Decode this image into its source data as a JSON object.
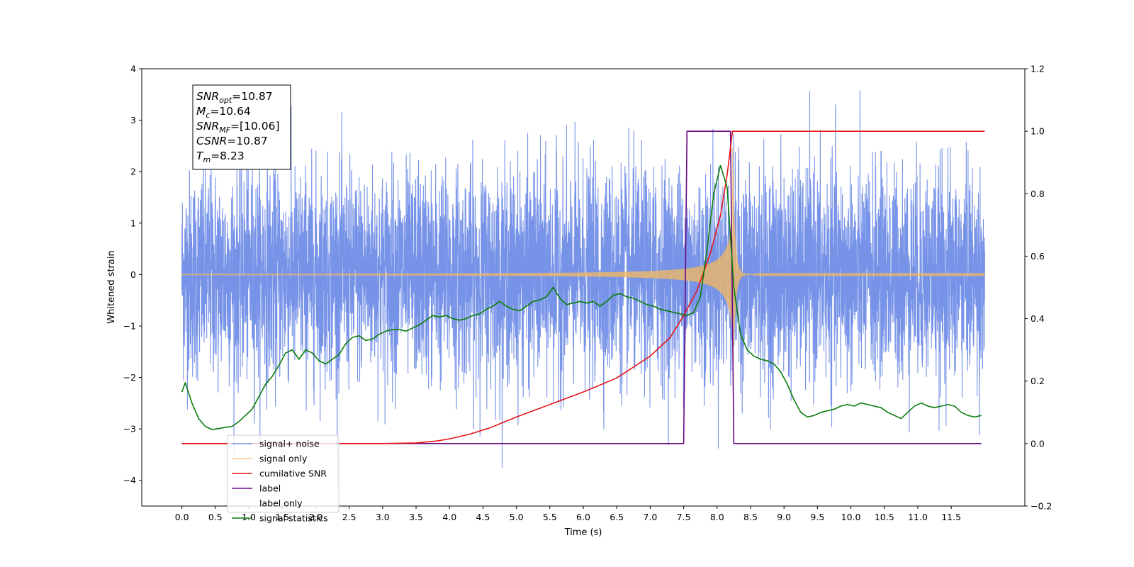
{
  "chart_data": {
    "type": "line",
    "xlabel": "Time (s)",
    "ylabel": "Whitened strain",
    "xlim": [
      -0.6,
      12.6
    ],
    "ylim": [
      -4.5,
      4.0
    ],
    "y2lim": [
      -0.2,
      1.2
    ],
    "xticks": [
      "0.0",
      "0.5",
      "1.0",
      "1.5",
      "2.0",
      "2.5",
      "3.0",
      "3.5",
      "4.0",
      "4.5",
      "5.0",
      "5.5",
      "6.0",
      "6.5",
      "7.0",
      "7.5",
      "8.0",
      "8.5",
      "9.0",
      "9.5",
      "10.0",
      "10.5",
      "11.0",
      "11.5"
    ],
    "yticks": [
      "−4",
      "−3",
      "−2",
      "−1",
      "0",
      "1",
      "2",
      "3",
      "4"
    ],
    "y2ticks": [
      "−0.2",
      "0.0",
      "0.2",
      "0.4",
      "0.6",
      "0.8",
      "1.0",
      "1.2"
    ],
    "legend_position": "lower-left",
    "annotation": [
      {
        "base": "SNR",
        "sub": "opt",
        "value": "=10.87"
      },
      {
        "base": "M",
        "sub": "c",
        "value": "=10.64"
      },
      {
        "base": "SNR",
        "sub": "MF",
        "value": "=[10.06]"
      },
      {
        "base": "CSNR",
        "sub": "",
        "value": "=10.87"
      },
      {
        "base": "T",
        "sub": "m",
        "value": "=8.23"
      }
    ],
    "series": [
      {
        "name": "signal+ noise",
        "color": "#7793e8",
        "axis": "left",
        "kind": "noise",
        "x_range": [
          0.0,
          12.0
        ],
        "amplitude": 1.0,
        "y_min": -4.1,
        "y_max": 3.63
      },
      {
        "name": "signal only",
        "color": "#f5b95e",
        "axis": "left",
        "kind": "chirp",
        "x_range": [
          0.0,
          12.0
        ],
        "peak_time": 8.23,
        "peak_amplitude": 2.6
      },
      {
        "name": "cumilative SNR",
        "color": "#e8141a",
        "axis": "right",
        "x": [
          0.0,
          2.5,
          3.0,
          3.5,
          3.8,
          4.0,
          4.3,
          4.6,
          5.0,
          5.5,
          6.0,
          6.5,
          7.0,
          7.3,
          7.5,
          7.7,
          7.9,
          8.05,
          8.15,
          8.23,
          8.6,
          9.0,
          10.0,
          11.0,
          12.0
        ],
        "y": [
          0.0,
          0.0,
          0.0,
          0.002,
          0.008,
          0.015,
          0.03,
          0.05,
          0.085,
          0.125,
          0.165,
          0.21,
          0.28,
          0.34,
          0.41,
          0.49,
          0.61,
          0.73,
          0.86,
          1.0,
          1.0,
          1.0,
          1.0,
          1.0,
          1.0
        ]
      },
      {
        "name": "label",
        "color": "#6a0880",
        "axis": "right",
        "x": [
          0.0,
          7.5,
          7.55,
          8.2,
          8.25,
          11.95
        ],
        "y": [
          0.0,
          0.0,
          1.0,
          1.0,
          0.0,
          0.0
        ]
      },
      {
        "name": "label only",
        "color": "#ffffff",
        "axis": "right",
        "x": [],
        "y": []
      },
      {
        "name": "signal statistics",
        "color": "#0a7c0a",
        "axis": "right",
        "x": [
          0.0,
          0.05,
          0.15,
          0.25,
          0.35,
          0.45,
          0.55,
          0.65,
          0.75,
          0.85,
          0.95,
          1.05,
          1.15,
          1.25,
          1.35,
          1.45,
          1.55,
          1.65,
          1.75,
          1.85,
          1.95,
          2.05,
          2.15,
          2.25,
          2.35,
          2.45,
          2.55,
          2.65,
          2.75,
          2.85,
          2.95,
          3.05,
          3.15,
          3.25,
          3.35,
          3.45,
          3.55,
          3.65,
          3.75,
          3.85,
          3.95,
          4.05,
          4.15,
          4.25,
          4.35,
          4.45,
          4.55,
          4.65,
          4.75,
          4.85,
          4.95,
          5.05,
          5.15,
          5.25,
          5.35,
          5.45,
          5.55,
          5.65,
          5.75,
          5.85,
          5.95,
          6.05,
          6.15,
          6.25,
          6.35,
          6.45,
          6.55,
          6.65,
          6.75,
          6.85,
          6.95,
          7.05,
          7.15,
          7.25,
          7.35,
          7.45,
          7.55,
          7.65,
          7.75,
          7.85,
          7.95,
          8.05,
          8.15,
          8.25,
          8.35,
          8.45,
          8.55,
          8.65,
          8.75,
          8.85,
          8.95,
          9.05,
          9.15,
          9.25,
          9.35,
          9.45,
          9.55,
          9.65,
          9.75,
          9.85,
          9.95,
          10.05,
          10.15,
          10.25,
          10.35,
          10.45,
          10.55,
          10.65,
          10.75,
          10.85,
          10.95,
          11.05,
          11.15,
          11.25,
          11.35,
          11.45,
          11.55,
          11.65,
          11.75,
          11.85,
          11.95
        ],
        "y": [
          0.165,
          0.195,
          0.13,
          0.08,
          0.055,
          0.045,
          0.048,
          0.052,
          0.055,
          0.07,
          0.09,
          0.11,
          0.15,
          0.19,
          0.215,
          0.25,
          0.29,
          0.3,
          0.27,
          0.3,
          0.29,
          0.265,
          0.255,
          0.27,
          0.285,
          0.32,
          0.34,
          0.345,
          0.33,
          0.335,
          0.35,
          0.36,
          0.365,
          0.365,
          0.36,
          0.37,
          0.38,
          0.395,
          0.41,
          0.405,
          0.41,
          0.4,
          0.395,
          0.4,
          0.41,
          0.415,
          0.43,
          0.44,
          0.455,
          0.44,
          0.43,
          0.425,
          0.44,
          0.455,
          0.46,
          0.47,
          0.5,
          0.465,
          0.445,
          0.45,
          0.455,
          0.45,
          0.455,
          0.44,
          0.455,
          0.475,
          0.48,
          0.47,
          0.465,
          0.455,
          0.445,
          0.44,
          0.43,
          0.425,
          0.42,
          0.415,
          0.41,
          0.42,
          0.47,
          0.62,
          0.8,
          0.89,
          0.82,
          0.5,
          0.35,
          0.3,
          0.28,
          0.27,
          0.265,
          0.255,
          0.23,
          0.19,
          0.14,
          0.1,
          0.085,
          0.09,
          0.1,
          0.105,
          0.11,
          0.12,
          0.125,
          0.12,
          0.13,
          0.125,
          0.12,
          0.115,
          0.1,
          0.09,
          0.08,
          0.1,
          0.12,
          0.13,
          0.12,
          0.115,
          0.12,
          0.125,
          0.12,
          0.1,
          0.09,
          0.085,
          0.09
        ]
      }
    ]
  }
}
